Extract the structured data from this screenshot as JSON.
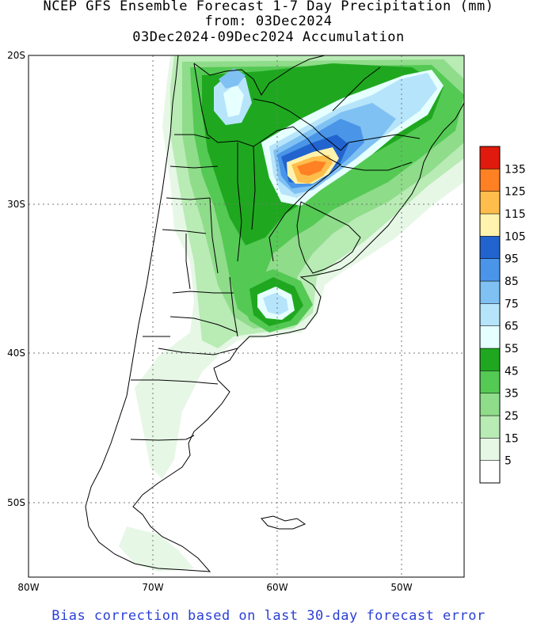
{
  "title": {
    "line1": "NCEP GFS Ensemble Forecast 1-7 Day Precipitation (mm)",
    "line2": "from: 03Dec2024",
    "line3": "03Dec2024-09Dec2024 Accumulation"
  },
  "footer": "Bias correction based on last 30-day forecast error",
  "map": {
    "lat_labels": [
      "20S",
      "30S",
      "40S",
      "50S"
    ],
    "lon_labels": [
      "80W",
      "70W",
      "60W",
      "50W"
    ],
    "extent": {
      "lon_min": -80,
      "lon_max": -45,
      "lat_min": -56,
      "lat_max": -20
    }
  },
  "legend": {
    "labels": [
      "5",
      "15",
      "25",
      "35",
      "45",
      "55",
      "65",
      "75",
      "85",
      "95",
      "105",
      "115",
      "125",
      "135"
    ],
    "colors": [
      "#ffffff",
      "#e6f7e6",
      "#b9ebb5",
      "#8fdc8a",
      "#54c954",
      "#1fa81f",
      "#e6ffff",
      "#b6e4fb",
      "#7fc1f3",
      "#4a95e8",
      "#2264cf",
      "#fff3ad",
      "#ffbe4c",
      "#ff8124",
      "#e01a0c"
    ]
  }
}
